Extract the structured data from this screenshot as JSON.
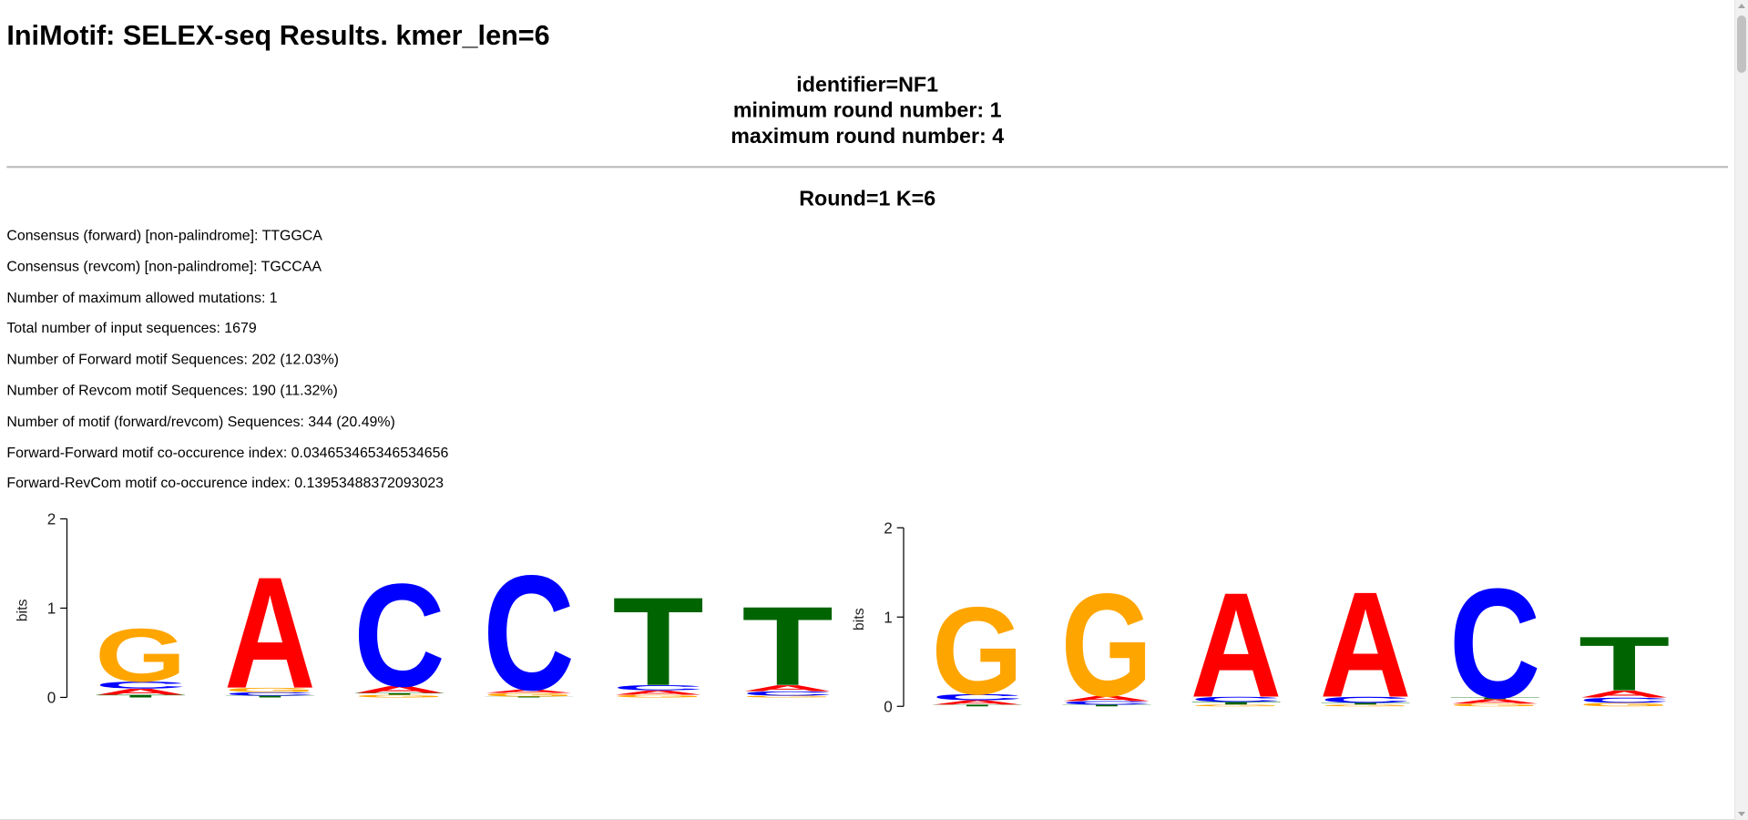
{
  "page": {
    "title": "IniMotif: SELEX-seq Results. kmer_len=6"
  },
  "header": {
    "identifier": "identifier=NF1",
    "min_round": "minimum round number: 1",
    "max_round": "maximum round number: 4"
  },
  "round": {
    "heading": "Round=1 K=6",
    "stats": [
      "Consensus (forward) [non-palindrome]: TTGGCA",
      "Consensus (revcom) [non-palindrome]: TGCCAA",
      "Number of maximum allowed mutations: 1",
      "Total number of input sequences: 1679",
      "Number of Forward motif Sequences: 202 (12.03%)",
      "Number of Revcom motif Sequences: 190 (11.32%)",
      "Number of motif (forward/revcom) Sequences: 344 (20.49%)",
      "Forward-Forward motif co-occurence index: 0.034653465346534656",
      "Forward-RevCom motif co-occurence index: 0.13953488372093023"
    ]
  },
  "colors": {
    "A": "#ff0000",
    "C": "#0000ff",
    "G": "#ffa500",
    "T": "#006400"
  },
  "logos": [
    {
      "ylabel": "bits",
      "yticks": [
        "0",
        "1",
        "2"
      ],
      "ymax": 2,
      "positions": [
        {
          "stack": [
            {
              "b": "T",
              "h": 0.03
            },
            {
              "b": "A",
              "h": 0.07
            },
            {
              "b": "C",
              "h": 0.08
            },
            {
              "b": "G",
              "h": 0.62
            }
          ]
        },
        {
          "stack": [
            {
              "b": "T",
              "h": 0.02
            },
            {
              "b": "C",
              "h": 0.04
            },
            {
              "b": "G",
              "h": 0.05
            },
            {
              "b": "A",
              "h": 1.3
            }
          ]
        },
        {
          "stack": [
            {
              "b": "G",
              "h": 0.03
            },
            {
              "b": "T",
              "h": 0.02
            },
            {
              "b": "A",
              "h": 0.08
            },
            {
              "b": "C",
              "h": 1.2
            }
          ]
        },
        {
          "stack": [
            {
              "b": "T",
              "h": 0.01
            },
            {
              "b": "G",
              "h": 0.04
            },
            {
              "b": "A",
              "h": 0.04
            },
            {
              "b": "C",
              "h": 1.34
            }
          ]
        },
        {
          "stack": [
            {
              "b": "G",
              "h": 0.03
            },
            {
              "b": "A",
              "h": 0.05
            },
            {
              "b": "C",
              "h": 0.06
            },
            {
              "b": "T",
              "h": 1.03
            }
          ]
        },
        {
          "stack": [
            {
              "b": "G",
              "h": 0.02
            },
            {
              "b": "C",
              "h": 0.05
            },
            {
              "b": "A",
              "h": 0.07
            },
            {
              "b": "T",
              "h": 0.92
            }
          ]
        }
      ]
    },
    {
      "ylabel": "bits",
      "yticks": [
        "0",
        "1",
        "2"
      ],
      "ymax": 2,
      "positions": [
        {
          "stack": [
            {
              "b": "T",
              "h": 0.02
            },
            {
              "b": "A",
              "h": 0.05
            },
            {
              "b": "C",
              "h": 0.07
            },
            {
              "b": "G",
              "h": 1.02
            }
          ]
        },
        {
          "stack": [
            {
              "b": "T",
              "h": 0.02
            },
            {
              "b": "C",
              "h": 0.04
            },
            {
              "b": "A",
              "h": 0.06
            },
            {
              "b": "G",
              "h": 1.2
            }
          ]
        },
        {
          "stack": [
            {
              "b": "G",
              "h": 0.02
            },
            {
              "b": "T",
              "h": 0.03
            },
            {
              "b": "C",
              "h": 0.06
            },
            {
              "b": "A",
              "h": 1.22
            }
          ]
        },
        {
          "stack": [
            {
              "b": "G",
              "h": 0.02
            },
            {
              "b": "T",
              "h": 0.02
            },
            {
              "b": "C",
              "h": 0.07
            },
            {
              "b": "A",
              "h": 1.23
            }
          ]
        },
        {
          "stack": [
            {
              "b": "G",
              "h": 0.03
            },
            {
              "b": "A",
              "h": 0.05
            },
            {
              "b": "T",
              "h": 0.02
            },
            {
              "b": "C",
              "h": 1.28
            }
          ]
        },
        {
          "stack": [
            {
              "b": "G",
              "h": 0.04
            },
            {
              "b": "C",
              "h": 0.06
            },
            {
              "b": "A",
              "h": 0.08
            },
            {
              "b": "T",
              "h": 0.63
            }
          ]
        }
      ]
    }
  ]
}
